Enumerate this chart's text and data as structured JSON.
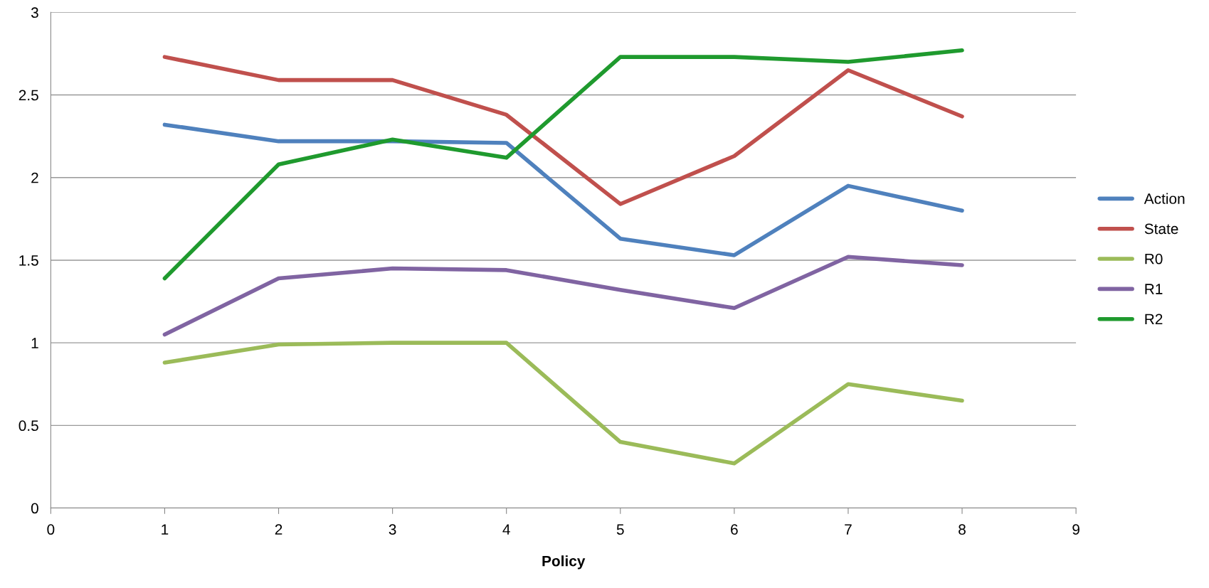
{
  "chart_data": {
    "type": "line",
    "xlabel": "Policy",
    "x": [
      1,
      2,
      3,
      4,
      5,
      6,
      7,
      8
    ],
    "series": [
      {
        "name": "Action",
        "color": "#4f81bd",
        "values": [
          2.32,
          2.22,
          2.22,
          2.21,
          1.63,
          1.53,
          1.95,
          1.8
        ]
      },
      {
        "name": "State",
        "color": "#c0504d",
        "values": [
          2.73,
          2.59,
          2.59,
          2.38,
          1.84,
          2.13,
          2.65,
          2.37
        ]
      },
      {
        "name": "R0",
        "color": "#9bbb59",
        "values": [
          0.88,
          0.99,
          1.0,
          1.0,
          0.4,
          0.27,
          0.75,
          0.65
        ]
      },
      {
        "name": "R1",
        "color": "#8064a2",
        "values": [
          1.05,
          1.39,
          1.45,
          1.44,
          1.32,
          1.21,
          1.52,
          1.47
        ]
      },
      {
        "name": "R2",
        "color": "#1f9a2e",
        "values": [
          1.39,
          2.08,
          2.23,
          2.12,
          2.73,
          2.73,
          2.7,
          2.77
        ]
      }
    ],
    "xlim": [
      0,
      9
    ],
    "xticks": [
      0,
      1,
      2,
      3,
      4,
      5,
      6,
      7,
      8,
      9
    ],
    "ylim": [
      0,
      3
    ],
    "yticks": [
      0,
      0.5,
      1,
      1.5,
      2,
      2.5,
      3
    ],
    "grid": "y",
    "legend": "right",
    "marker": "none",
    "line_style": "solid"
  }
}
